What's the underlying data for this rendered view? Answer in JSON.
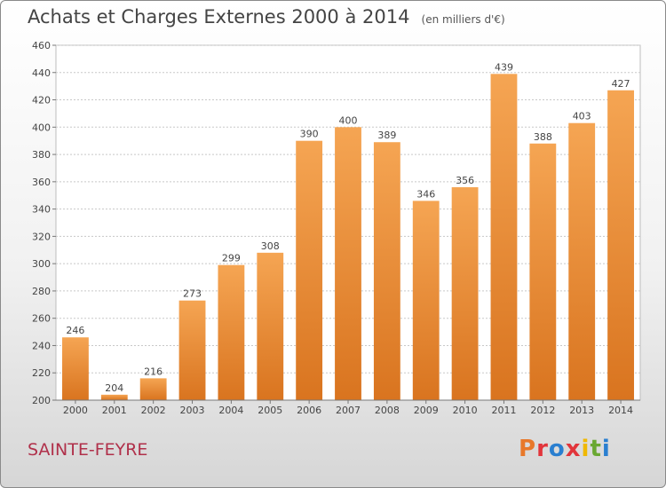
{
  "header": {
    "title": "Achats et Charges Externes 2000 à 2014",
    "unit": "(en milliers d'€)"
  },
  "footer": {
    "commune": "SAINTE-FEYRE",
    "logo_text": "Proxiti",
    "logo_colors": [
      "#e8782a",
      "#e2353b",
      "#2a7fd0",
      "#e2353b",
      "#f0b800",
      "#6aa832",
      "#2a7fd0"
    ]
  },
  "colors": {
    "bar_top": "#f5a553",
    "bar_bottom": "#d9741f",
    "grid": "#c8c8c8",
    "text": "#444444"
  },
  "chart_data": {
    "type": "bar",
    "title": "Achats et Charges Externes 2000 à 2014",
    "subtitle": "(en milliers d'€)",
    "categories": [
      "2000",
      "2001",
      "2002",
      "2003",
      "2004",
      "2005",
      "2006",
      "2007",
      "2008",
      "2009",
      "2010",
      "2011",
      "2012",
      "2013",
      "2014"
    ],
    "values": [
      246,
      204,
      216,
      273,
      299,
      308,
      390,
      400,
      389,
      346,
      356,
      439,
      388,
      403,
      427
    ],
    "ylim": [
      200,
      460
    ],
    "yticks": [
      200,
      220,
      240,
      260,
      280,
      300,
      320,
      340,
      360,
      380,
      400,
      420,
      440,
      460
    ],
    "grid": true,
    "xlabel": "",
    "ylabel": ""
  }
}
